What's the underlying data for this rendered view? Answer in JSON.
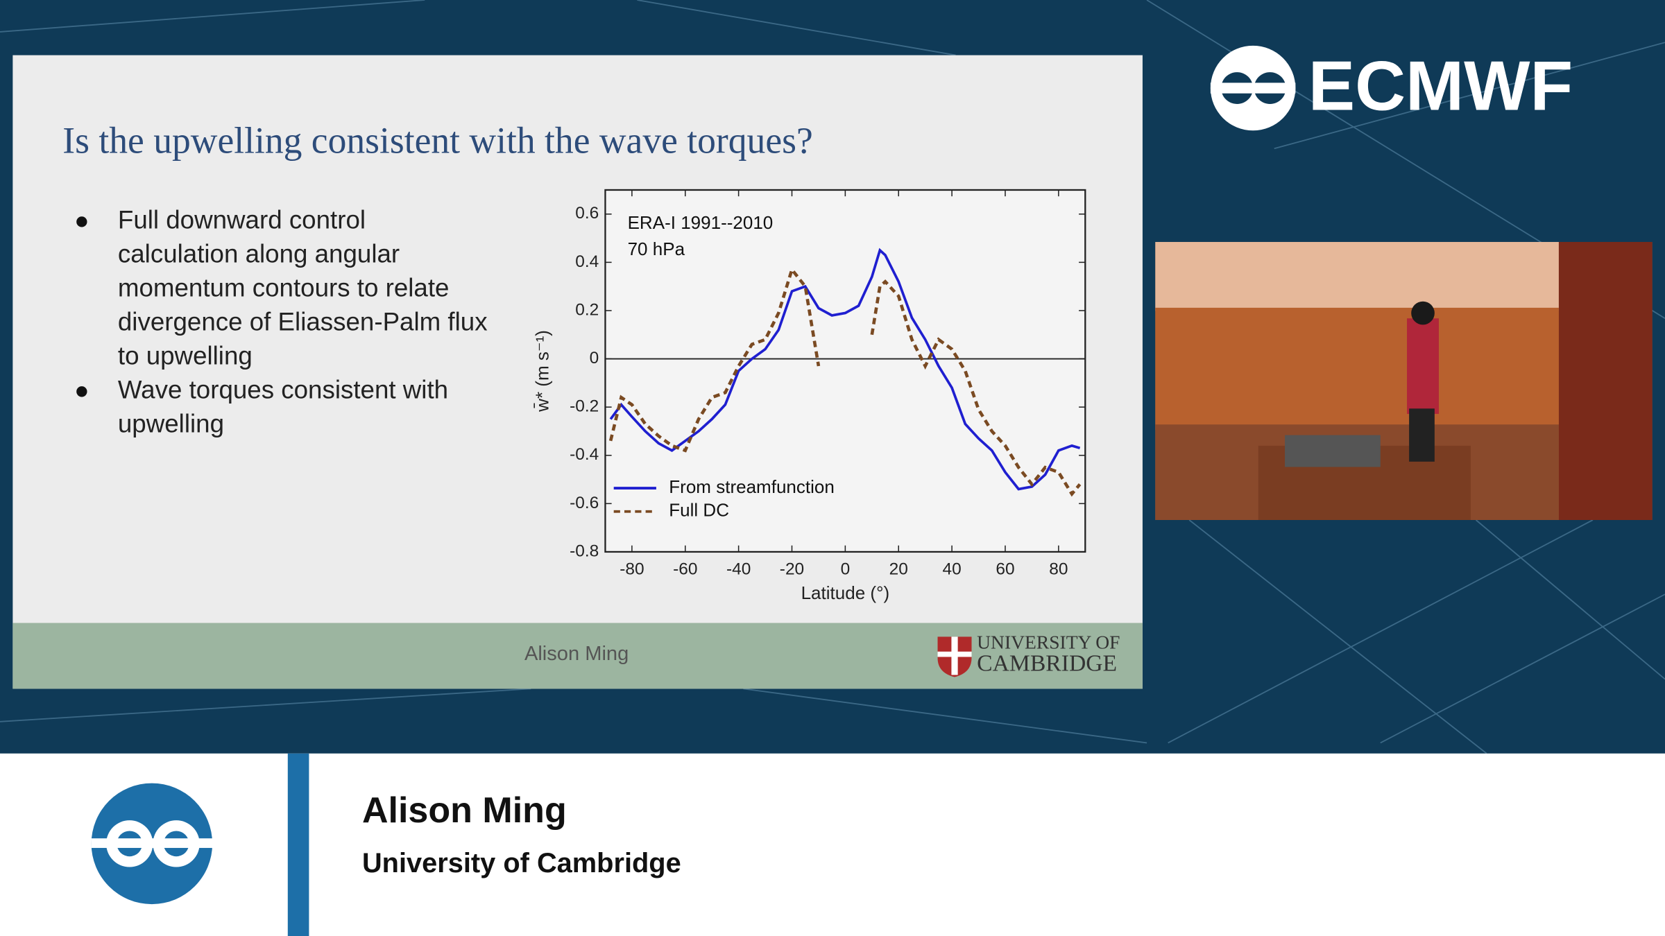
{
  "logo": {
    "text": "ECMWF"
  },
  "slide": {
    "title": "Is the upwelling consistent with the wave torques?",
    "bullets": [
      [
        "Full downward control",
        "calculation along angular",
        "momentum contours to relate",
        "divergence of Eliassen-Palm flux",
        "to upwelling"
      ],
      [
        "Wave torques consistent with",
        "upwelling"
      ]
    ],
    "footer": {
      "presenter": "Alison Ming",
      "university": [
        "UNIVERSITY OF",
        "CAMBRIDGE"
      ]
    }
  },
  "chart_data": {
    "type": "line",
    "annotations": [
      "ERA-I 1991--2010",
      "70 hPa"
    ],
    "x_label": "Latitude (°)",
    "y_label": "w̄* (m s⁻¹)",
    "x": [
      -88,
      -84,
      -80,
      -75,
      -70,
      -65,
      -60,
      -55,
      -50,
      -45,
      -40,
      -35,
      -30,
      -25,
      -20,
      -15,
      -10,
      -5,
      0,
      5,
      10,
      13,
      15,
      20,
      25,
      30,
      35,
      40,
      45,
      50,
      55,
      60,
      65,
      70,
      75,
      80,
      85,
      88
    ],
    "series": [
      {
        "name": "From streamfunction",
        "color": "#1f1fd0",
        "line_style": "solid",
        "values": [
          -0.25,
          -0.19,
          -0.24,
          -0.3,
          -0.35,
          -0.38,
          -0.34,
          -0.3,
          -0.25,
          -0.19,
          -0.05,
          0.0,
          0.04,
          0.12,
          0.28,
          0.3,
          0.21,
          0.18,
          0.19,
          0.22,
          0.34,
          0.45,
          0.43,
          0.32,
          0.17,
          0.08,
          -0.03,
          -0.12,
          -0.27,
          -0.33,
          -0.38,
          -0.47,
          -0.54,
          -0.53,
          -0.48,
          -0.38,
          -0.36,
          -0.37
        ]
      },
      {
        "name": "Full DC",
        "color": "#7a4a22",
        "line_style": "dashed",
        "values": [
          -0.34,
          -0.16,
          -0.19,
          -0.27,
          -0.32,
          -0.36,
          -0.38,
          -0.25,
          -0.16,
          -0.14,
          -0.03,
          0.06,
          0.08,
          0.19,
          0.37,
          0.3,
          -0.03,
          null,
          null,
          null,
          0.1,
          0.3,
          0.32,
          0.26,
          0.08,
          -0.03,
          0.08,
          0.04,
          -0.05,
          -0.21,
          -0.3,
          -0.36,
          -0.45,
          -0.52,
          -0.45,
          -0.47,
          -0.56,
          -0.52
        ]
      }
    ],
    "xlim": [
      -90,
      90
    ],
    "ylim": [
      -0.8,
      0.7
    ],
    "xticks": [
      -80,
      -60,
      -40,
      -20,
      0,
      20,
      40,
      60,
      80
    ],
    "yticks": [
      0.6,
      0.4,
      0.2,
      0,
      -0.2,
      -0.4,
      -0.6,
      -0.8
    ],
    "zero_line": true,
    "legend": "lower left"
  },
  "lower_third": {
    "name": "Alison Ming",
    "affiliation": "University of Cambridge"
  }
}
